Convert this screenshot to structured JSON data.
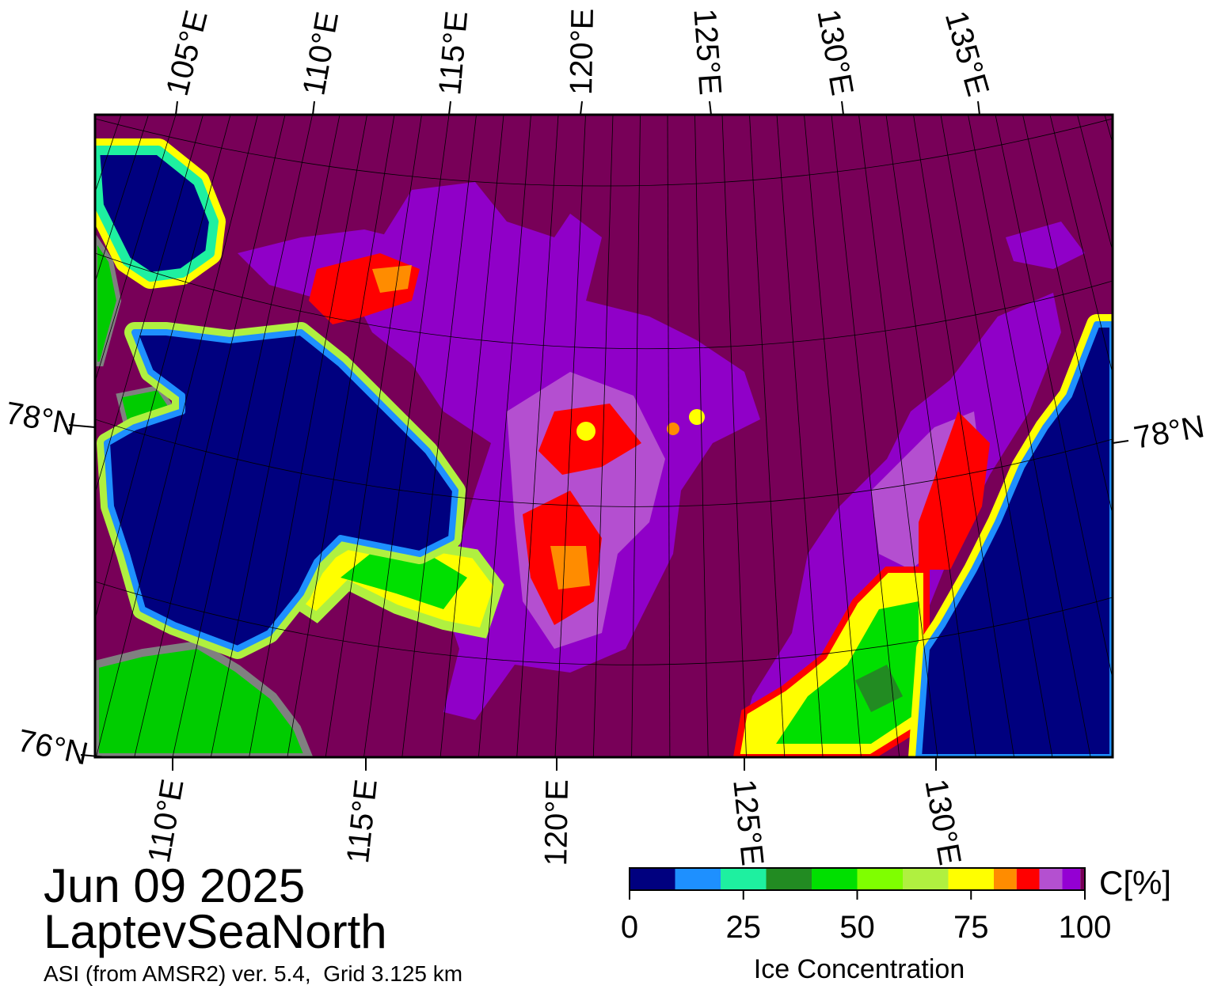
{
  "map": {
    "top_lon_labels": [
      "105°E",
      "110°E",
      "115°E",
      "120°E",
      "125°E",
      "130°E",
      "135°E"
    ],
    "bottom_lon_labels": [
      "110°E",
      "115°E",
      "120°E",
      "125°E",
      "130°E"
    ],
    "left_lat_labels": [
      "78°N",
      "76°N"
    ],
    "right_lat_labels": [
      "78°N"
    ]
  },
  "date": "Jun 09 2025",
  "region": "LaptevSeaNorth",
  "subtitle": "ASI (from AMSR2) ver. 5.4,  Grid 3.125 km",
  "colorbar": {
    "title": "Ice Concentration",
    "unit": "C[%]",
    "lim": [
      0,
      100
    ],
    "ticks": [
      0,
      25,
      50,
      75,
      100
    ],
    "bounds": [
      0,
      10,
      20,
      30,
      40,
      50,
      60,
      70,
      80,
      85,
      90,
      95,
      99,
      100
    ],
    "colors": [
      "#00007f",
      "#1e90ff",
      "#1ef0a0",
      "#228b22",
      "#00e000",
      "#7fff00",
      "#b0f040",
      "#ffff00",
      "#ff8c00",
      "#ff0000",
      "#b450d0",
      "#9400d3",
      "#780058"
    ]
  }
}
